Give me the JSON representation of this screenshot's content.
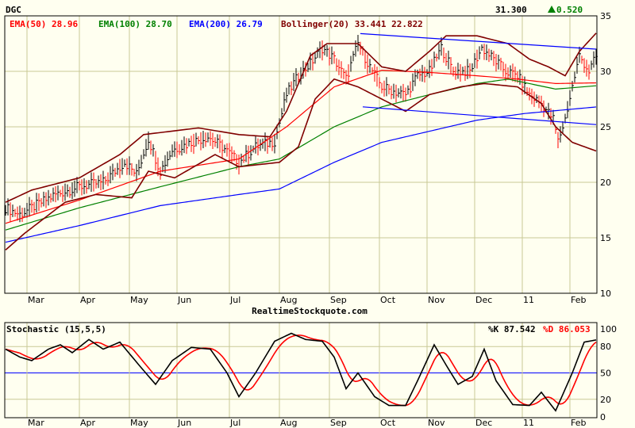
{
  "header": {
    "symbol": "DGC",
    "last": "31.300",
    "change": "0.520",
    "change_color": "#008000"
  },
  "legend": [
    {
      "label": "EMA(50) 28.96",
      "color": "#ff0000"
    },
    {
      "label": "EMA(100) 28.70",
      "color": "#008000"
    },
    {
      "label": "EMA(200) 26.79",
      "color": "#0000ff"
    },
    {
      "label": "Bollinger(20) 33.441 22.822",
      "color": "#800000"
    }
  ],
  "watermark": "RealtimeStockquote.com",
  "stoch": {
    "title": "Stochastic (15,5,5)",
    "k_label": "%K 87.542",
    "d_label": "%D 86.053"
  },
  "chart_data": [
    {
      "type": "line",
      "title": "DGC",
      "ylim": [
        10,
        35
      ],
      "yticks": [
        "35",
        "30",
        "25",
        "20",
        "15",
        "10"
      ],
      "days": 249,
      "months": [
        {
          "label": "Mar",
          "day": 9
        },
        {
          "label": "Apr",
          "day": 31
        },
        {
          "label": "May",
          "day": 52
        },
        {
          "label": "Jun",
          "day": 72
        },
        {
          "label": "Jul",
          "day": 94
        },
        {
          "label": "Aug",
          "day": 115
        },
        {
          "label": "Sep",
          "day": 136
        },
        {
          "label": "Oct",
          "day": 157
        },
        {
          "label": "Nov",
          "day": 177
        },
        {
          "label": "Dec",
          "day": 197
        },
        {
          "label": "11",
          "day": 217
        },
        {
          "label": "Feb",
          "day": 237
        }
      ],
      "close": [
        [
          0,
          17.7
        ],
        [
          6,
          17.1
        ],
        [
          11,
          17.7
        ],
        [
          21,
          18.9
        ],
        [
          31,
          19.6
        ],
        [
          41,
          20
        ],
        [
          50,
          21.8
        ],
        [
          55,
          20.7
        ],
        [
          60,
          23.9
        ],
        [
          65,
          21
        ],
        [
          70,
          22.9
        ],
        [
          78,
          23.6
        ],
        [
          85,
          24.1
        ],
        [
          91,
          23.2
        ],
        [
          98,
          21.8
        ],
        [
          105,
          23.2
        ],
        [
          113,
          23.7
        ],
        [
          118,
          27.9
        ],
        [
          123,
          29.6
        ],
        [
          128,
          30.7
        ],
        [
          133,
          32.1
        ],
        [
          138,
          31.1
        ],
        [
          143,
          29.3
        ],
        [
          148,
          32.5
        ],
        [
          153,
          30.4
        ],
        [
          158,
          28.6
        ],
        [
          163,
          28.2
        ],
        [
          168,
          27.9
        ],
        [
          173,
          29.6
        ],
        [
          178,
          30
        ],
        [
          183,
          32.1
        ],
        [
          188,
          30
        ],
        [
          195,
          30
        ],
        [
          200,
          32.1
        ],
        [
          205,
          31.1
        ],
        [
          210,
          30
        ],
        [
          215,
          29.6
        ],
        [
          220,
          27.9
        ],
        [
          225,
          27.1
        ],
        [
          230,
          25.7
        ],
        [
          232,
          23.7
        ],
        [
          235,
          25.7
        ],
        [
          238,
          28.6
        ],
        [
          241,
          31.4
        ],
        [
          245,
          30
        ],
        [
          248,
          31.3
        ]
      ],
      "series": [
        {
          "name": "EMA(50)",
          "color": "#ff0000",
          "points": [
            [
              0,
              16.3
            ],
            [
              31,
              18.4
            ],
            [
              65,
              21
            ],
            [
              98,
              22.1
            ],
            [
              118,
              25
            ],
            [
              138,
              28.6
            ],
            [
              158,
              30.1
            ],
            [
              178,
              29.9
            ],
            [
              198,
              29.6
            ],
            [
              215,
              29.3
            ],
            [
              231,
              28.9
            ],
            [
              248,
              28.96
            ]
          ]
        },
        {
          "name": "EMA(100)",
          "color": "#008000",
          "points": [
            [
              0,
              15.7
            ],
            [
              31,
              17.7
            ],
            [
              65,
              19.6
            ],
            [
              98,
              21.4
            ],
            [
              115,
              22.1
            ],
            [
              138,
              25
            ],
            [
              158,
              26.8
            ],
            [
              178,
              27.9
            ],
            [
              198,
              28.9
            ],
            [
              211,
              29.3
            ],
            [
              231,
              28.4
            ],
            [
              248,
              28.7
            ]
          ]
        },
        {
          "name": "EMA(200)",
          "color": "#0000ff",
          "points": [
            [
              0,
              14.6
            ],
            [
              31,
              16.1
            ],
            [
              65,
              17.9
            ],
            [
              98,
              18.9
            ],
            [
              115,
              19.4
            ],
            [
              138,
              21.8
            ],
            [
              158,
              23.6
            ],
            [
              178,
              24.6
            ],
            [
              198,
              25.6
            ],
            [
              218,
              26.2
            ],
            [
              248,
              26.79
            ]
          ]
        },
        {
          "name": "Bollinger upper",
          "color": "#800000",
          "points": [
            [
              0,
              18.2
            ],
            [
              11,
              19.3
            ],
            [
              31,
              20.4
            ],
            [
              48,
              22.5
            ],
            [
              58,
              24.3
            ],
            [
              81,
              24.9
            ],
            [
              98,
              24.3
            ],
            [
              111,
              24.1
            ],
            [
              118,
              26.4
            ],
            [
              128,
              31.4
            ],
            [
              135,
              32.5
            ],
            [
              148,
              32.5
            ],
            [
              158,
              30.4
            ],
            [
              168,
              30
            ],
            [
              178,
              31.8
            ],
            [
              185,
              33.2
            ],
            [
              198,
              33.2
            ],
            [
              211,
              32.5
            ],
            [
              220,
              31.1
            ],
            [
              228,
              30.4
            ],
            [
              235,
              29.6
            ],
            [
              241,
              31.8
            ],
            [
              248,
              33.441
            ]
          ]
        },
        {
          "name": "Bollinger lower",
          "color": "#800000",
          "points": [
            [
              0,
              13.9
            ],
            [
              8,
              15.4
            ],
            [
              25,
              18.2
            ],
            [
              38,
              18.9
            ],
            [
              53,
              18.6
            ],
            [
              60,
              21
            ],
            [
              71,
              20.4
            ],
            [
              88,
              22.5
            ],
            [
              98,
              21.4
            ],
            [
              115,
              21.8
            ],
            [
              123,
              23.2
            ],
            [
              130,
              27.5
            ],
            [
              138,
              29.3
            ],
            [
              148,
              28.6
            ],
            [
              158,
              27.5
            ],
            [
              168,
              26.4
            ],
            [
              178,
              27.9
            ],
            [
              191,
              28.6
            ],
            [
              201,
              28.9
            ],
            [
              215,
              28.6
            ],
            [
              225,
              27.1
            ],
            [
              231,
              25
            ],
            [
              238,
              23.6
            ],
            [
              248,
              22.822
            ]
          ]
        },
        {
          "name": "Trendline upper",
          "color": "#0000ff",
          "points": [
            [
              149,
              33.4
            ],
            [
              248,
              32
            ]
          ]
        },
        {
          "name": "Trendline lower",
          "color": "#0000ff",
          "points": [
            [
              150,
              26.8
            ],
            [
              248,
              25.2
            ]
          ]
        }
      ]
    },
    {
      "type": "line",
      "title": "Stochastic (15,5,5)",
      "ylim": [
        0,
        100
      ],
      "yticks": [
        100,
        80,
        50,
        20,
        0
      ],
      "k": [
        [
          0,
          77
        ],
        [
          6,
          68
        ],
        [
          11,
          64
        ],
        [
          18,
          77
        ],
        [
          23,
          82
        ],
        [
          28,
          73
        ],
        [
          35,
          88
        ],
        [
          41,
          77
        ],
        [
          48,
          85
        ],
        [
          56,
          59
        ],
        [
          63,
          37
        ],
        [
          70,
          64
        ],
        [
          78,
          79
        ],
        [
          86,
          77
        ],
        [
          93,
          50
        ],
        [
          98,
          23
        ],
        [
          105,
          50
        ],
        [
          113,
          86
        ],
        [
          120,
          95
        ],
        [
          126,
          88
        ],
        [
          133,
          86
        ],
        [
          138,
          68
        ],
        [
          143,
          32
        ],
        [
          148,
          50
        ],
        [
          155,
          23
        ],
        [
          161,
          13
        ],
        [
          168,
          13
        ],
        [
          173,
          41
        ],
        [
          180,
          82
        ],
        [
          185,
          59
        ],
        [
          190,
          37
        ],
        [
          196,
          46
        ],
        [
          201,
          77
        ],
        [
          206,
          41
        ],
        [
          213,
          14
        ],
        [
          220,
          13
        ],
        [
          225,
          28
        ],
        [
          231,
          7
        ],
        [
          238,
          50
        ],
        [
          243,
          85
        ],
        [
          248,
          87.5
        ]
      ],
      "d_lag_days": 3
    }
  ]
}
